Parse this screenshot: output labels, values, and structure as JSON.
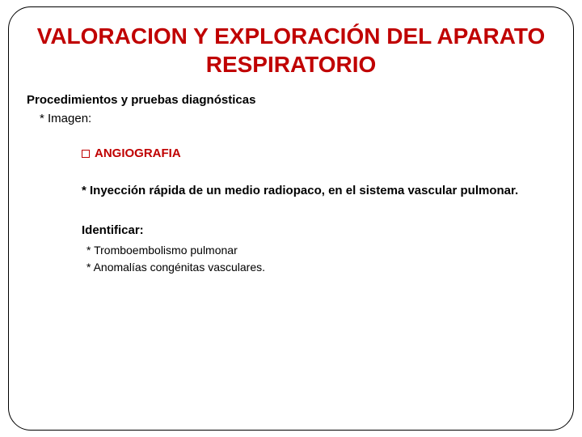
{
  "colors": {
    "accent": "#c00000",
    "text": "#000000",
    "background": "#ffffff",
    "border": "#000000"
  },
  "typography": {
    "title_fontsize": 28,
    "body_fontsize": 15,
    "small_fontsize": 14,
    "font_family": "Arial"
  },
  "title": "VALORACION Y EXPLORACIÓN DEL APARATO RESPIRATORIO",
  "subtitle": "Procedimientos y pruebas diagnósticas",
  "level2": "* Imagen:",
  "heading": "ANGIOGRAFIA",
  "description": "* Inyección rápida de un medio radiopaco, en el sistema vascular pulmonar.",
  "identify_label": "Identificar:",
  "identify_items": [
    "* Tromboembolismo pulmonar",
    "* Anomalías congénitas vasculares."
  ]
}
